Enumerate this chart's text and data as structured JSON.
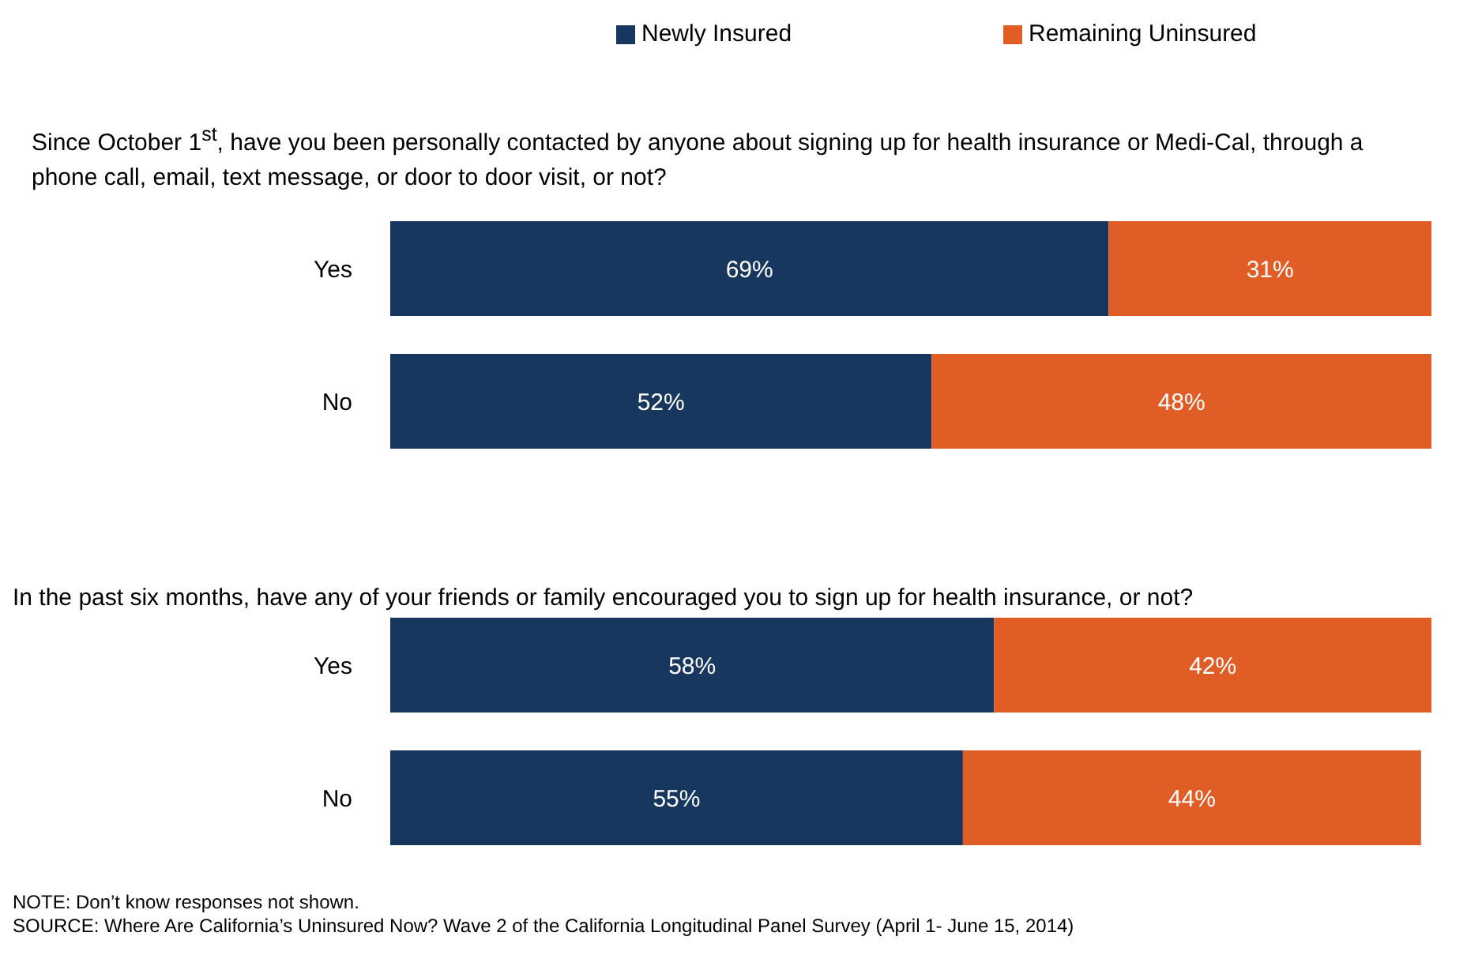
{
  "chart_data": [
    {
      "type": "bar",
      "orientation": "horizontal",
      "stacked": true,
      "title": "Since October 1$^{st}$, have you been personally contacted by anyone about signing up for health insurance or Medi-Cal, through a phone call, email, text message, or door to door visit, or not?",
      "categories": [
        "Yes",
        "No"
      ],
      "xlim": [
        0,
        100
      ],
      "tick_labels": "y",
      "legend": "top",
      "series": [
        {
          "name": "Newly Insured",
          "color": "#17375e",
          "values": [
            69,
            52
          ],
          "value_labels": [
            "69%",
            "52%"
          ]
        },
        {
          "name": "Remaining Uninsured",
          "color": "#e05d26",
          "values": [
            31,
            48
          ],
          "value_labels": [
            "31%",
            "48%"
          ]
        }
      ]
    },
    {
      "type": "bar",
      "orientation": "horizontal",
      "stacked": true,
      "title": "In the past six months, have any of your friends or family encouraged you to sign up for health insurance, or not?",
      "categories": [
        "Yes",
        "No"
      ],
      "xlim": [
        0,
        100
      ],
      "tick_labels": "y",
      "series": [
        {
          "name": "Newly Insured",
          "color": "#17375e",
          "values": [
            58,
            55
          ],
          "value_labels": [
            "58%",
            "55%"
          ]
        },
        {
          "name": "Remaining Uninsured",
          "color": "#e05d26",
          "values": [
            42,
            44
          ],
          "value_labels": [
            "42%",
            "44%"
          ]
        }
      ],
      "annotations": [
        "NOTE: Don’t know responses not shown.",
        "SOURCE: Where Are California’s Uninsured Now? Wave 2 of the California Longitudinal Panel Survey (April 1- June 15, 2014)"
      ]
    }
  ]
}
